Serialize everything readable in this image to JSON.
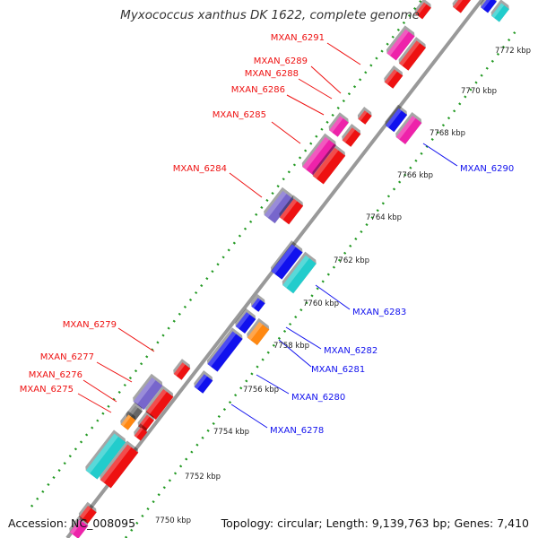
{
  "title": "Myxococcus xanthus DK 1622, complete genome",
  "footer": {
    "accession": "Accession: NC_008095",
    "topology": "Topology: circular; Length: 9,139,763 bp; Genes: 7,410"
  },
  "colors": {
    "red": "#ee1111",
    "magenta": "#ee22aa",
    "purple": "#7766cc",
    "blue": "#1111ee",
    "cyan": "#22cccc",
    "orange": "#ff8811",
    "gray": "#666666",
    "label_forward": "#ee1111",
    "label_reverse": "#1111ee",
    "dots": "#229922"
  },
  "ticks": [
    "7750 kbp",
    "7752 kbp",
    "7754 kbp",
    "7756 kbp",
    "7758 kbp",
    "7760 kbp",
    "7762 kbp",
    "7764 kbp",
    "7766 kbp",
    "7768 kbp",
    "7770 kbp",
    "7772 kbp"
  ],
  "labels_forward": [
    "MXAN_6291",
    "MXAN_6289",
    "MXAN_6288",
    "MXAN_6286",
    "MXAN_6285",
    "MXAN_6284",
    "MXAN_6279",
    "MXAN_6277",
    "MXAN_6276",
    "MXAN_6275"
  ],
  "labels_reverse": [
    "MXAN_6290",
    "MXAN_6283",
    "MXAN_6282",
    "MXAN_6281",
    "MXAN_6280",
    "MXAN_6278"
  ]
}
